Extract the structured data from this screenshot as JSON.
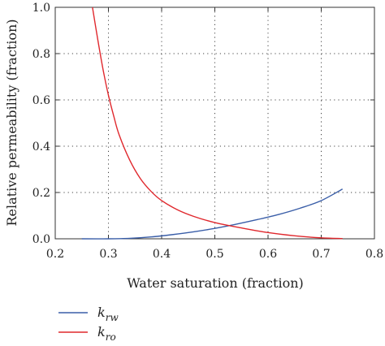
{
  "chart_data": {
    "type": "line",
    "title": "",
    "xlabel": "Water saturation (fraction)",
    "ylabel": "Relative permeability (fraction)",
    "xlim": [
      0.2,
      0.8
    ],
    "ylim": [
      0.0,
      1.0
    ],
    "xticks": [
      "0.2",
      "0.3",
      "0.4",
      "0.5",
      "0.6",
      "0.7",
      "0.8"
    ],
    "yticks": [
      "0.0",
      "0.2",
      "0.4",
      "0.6",
      "0.8",
      "1.0"
    ],
    "grid": true,
    "legend_position": "bottom-left, below plot",
    "series": [
      {
        "name_main": "k",
        "name_sub": "rw",
        "color": "#3a5ea8",
        "x": [
          0.25,
          0.3,
          0.34,
          0.38,
          0.42,
          0.46,
          0.5,
          0.54,
          0.58,
          0.62,
          0.66,
          0.7,
          0.74
        ],
        "y": [
          0.0,
          0.0,
          0.002,
          0.008,
          0.018,
          0.03,
          0.045,
          0.063,
          0.083,
          0.105,
          0.132,
          0.165,
          0.215
        ]
      },
      {
        "name_main": "k",
        "name_sub": "ro",
        "color": "#e0282d",
        "x": [
          0.27,
          0.28,
          0.29,
          0.3,
          0.31,
          0.32,
          0.34,
          0.36,
          0.38,
          0.4,
          0.43,
          0.46,
          0.5,
          0.55,
          0.6,
          0.65,
          0.7,
          0.74
        ],
        "y": [
          1.0,
          0.86,
          0.73,
          0.62,
          0.53,
          0.45,
          0.34,
          0.26,
          0.205,
          0.165,
          0.125,
          0.097,
          0.07,
          0.047,
          0.027,
          0.013,
          0.004,
          0.001
        ]
      }
    ]
  }
}
